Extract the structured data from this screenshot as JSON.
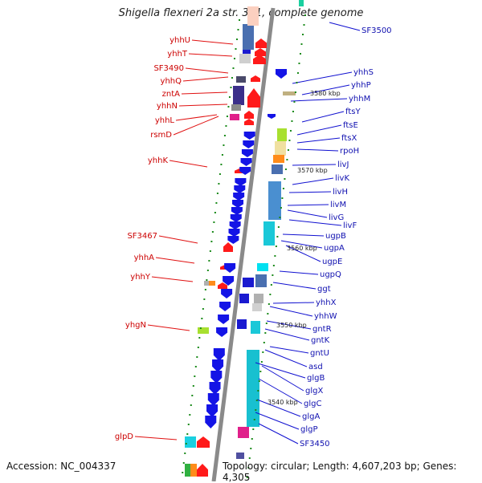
{
  "title": "Shigella flexneri 2a str. 301, complete genome",
  "accession": "Accession: NC_004337",
  "topology": "Topology: circular; Length: 4,607,203 bp; Genes: 4,305",
  "colors": {
    "reverse": "#ff1a1a",
    "forward": "#1414e6",
    "backbone": "#8a8a8a",
    "tick": "#1a8a1a"
  },
  "ticks": [
    "3580 kbp",
    "3570 kbp",
    "3560 kbp",
    "3550 kbp",
    "3540 kbp"
  ],
  "left_genes": [
    "yhhU",
    "yhhT",
    "SF3490",
    "yhhQ",
    "zntA",
    "yhhN",
    "yhhL",
    "rsmD",
    "yhhK",
    "SF3467",
    "yhhA",
    "yhhY",
    "yhgN",
    "glpD"
  ],
  "right_genes": [
    "SF3500",
    "yhhS",
    "yhhP",
    "yhhM",
    "ftsY",
    "ftsE",
    "ftsX",
    "rpoH",
    "livJ",
    "livK",
    "livH",
    "livM",
    "livG",
    "livF",
    "ugpB",
    "ugpA",
    "ugpE",
    "ugpQ",
    "ggt",
    "yhhX",
    "yhhW",
    "gntR",
    "gntK",
    "gntU",
    "asd",
    "glgB",
    "glgX",
    "glgC",
    "glgA",
    "glgP",
    "SF3450"
  ]
}
